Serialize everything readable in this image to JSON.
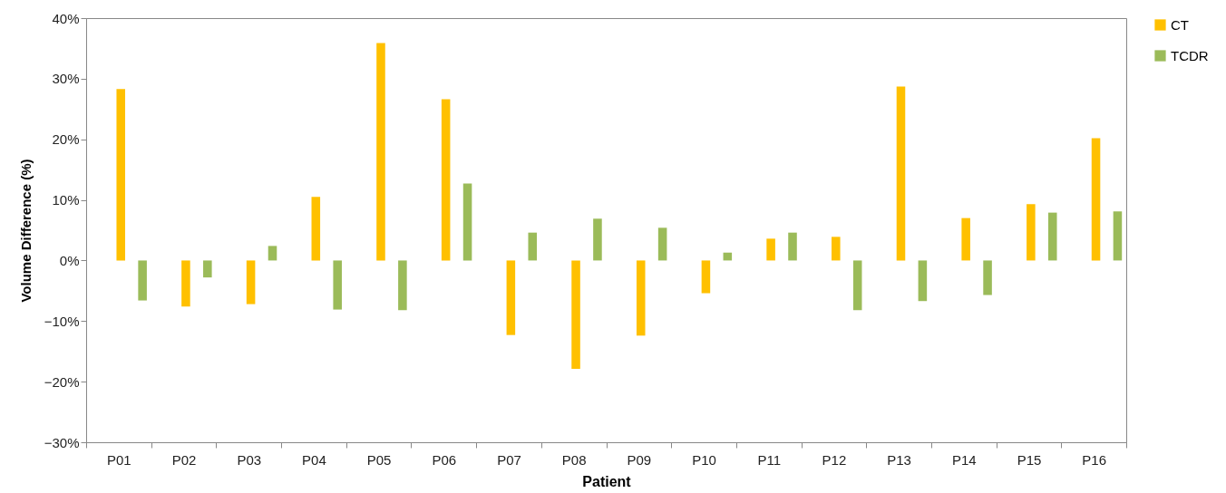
{
  "chart_data": {
    "type": "bar",
    "xlabel": "Patient",
    "ylabel": "Volume Difference (%)",
    "categories": [
      "P01",
      "P02",
      "P03",
      "P04",
      "P05",
      "P06",
      "P07",
      "P08",
      "P09",
      "P10",
      "P11",
      "P12",
      "P13",
      "P14",
      "P15",
      "P16"
    ],
    "series": [
      {
        "name": "CT",
        "color": "#ffc000",
        "values": [
          28.3,
          -7.6,
          -7.2,
          10.5,
          35.9,
          26.6,
          -12.3,
          -17.9,
          -12.4,
          -5.4,
          3.6,
          3.9,
          28.7,
          7.0,
          9.3,
          20.2
        ]
      },
      {
        "name": "TCDR",
        "color": "#9bbb59",
        "values": [
          -6.6,
          -2.8,
          2.4,
          -8.1,
          -8.2,
          12.7,
          4.6,
          6.9,
          5.4,
          1.3,
          4.6,
          -8.2,
          -6.7,
          -5.7,
          7.9,
          8.1
        ]
      }
    ],
    "ylim": [
      -30,
      40
    ],
    "yticks": [
      {
        "value": -30,
        "label": "−30%"
      },
      {
        "value": -20,
        "label": "−20%"
      },
      {
        "value": -10,
        "label": "−10%"
      },
      {
        "value": 0,
        "label": "0%"
      },
      {
        "value": 10,
        "label": "10%"
      },
      {
        "value": 20,
        "label": "20%"
      },
      {
        "value": 30,
        "label": "30%"
      },
      {
        "value": 40,
        "label": "40%"
      }
    ],
    "grid": false,
    "legend": "right"
  }
}
